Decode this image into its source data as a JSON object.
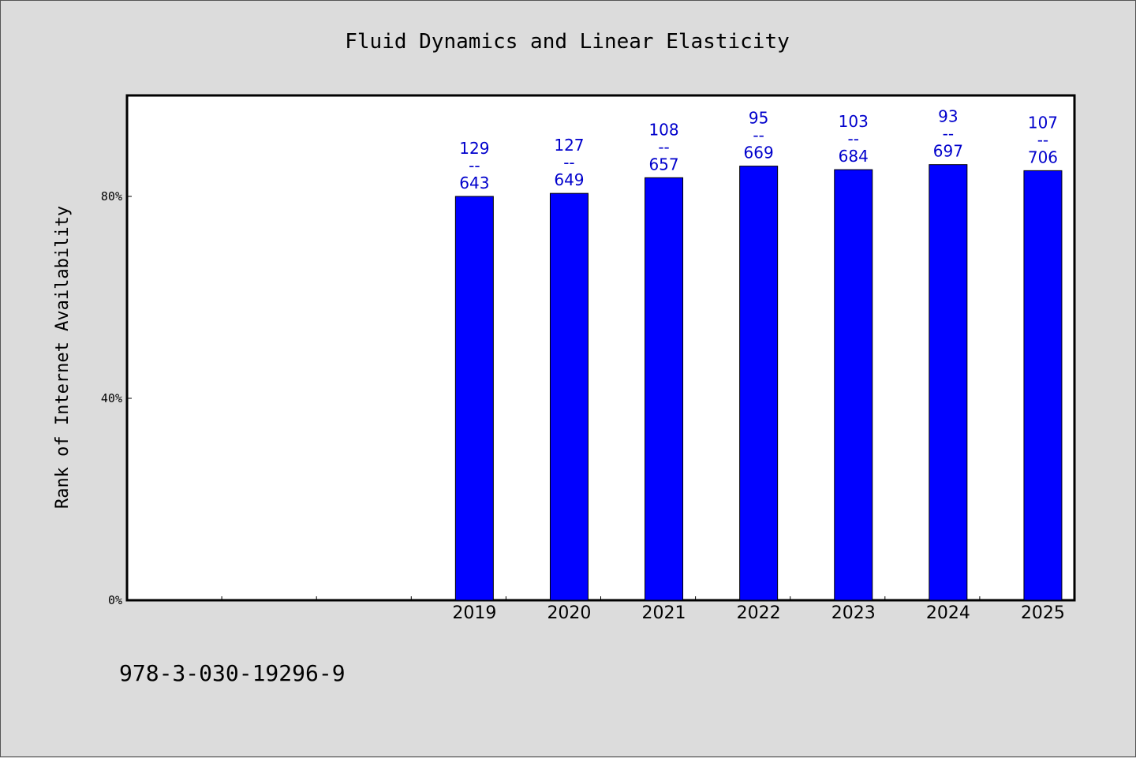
{
  "chart_data": {
    "type": "bar",
    "title": "Fluid Dynamics and Linear Elasticity",
    "xlabel": "",
    "ylabel": "Rank of Internet Availability",
    "categories": [
      "",
      "",
      "",
      "2019",
      "2020",
      "2021",
      "2022",
      "2023",
      "2024",
      "2025"
    ],
    "values": [
      null,
      null,
      null,
      80.0,
      80.6,
      83.7,
      86.0,
      85.3,
      86.3,
      85.1
    ],
    "value_unit": "%",
    "ylim": [
      0,
      100
    ],
    "yticks": [
      0,
      40,
      80
    ],
    "ytick_labels": [
      "0%",
      "40%",
      "80%"
    ],
    "bar_labels": [
      null,
      null,
      null,
      {
        "top": "129",
        "sep": "--",
        "bottom": "643"
      },
      {
        "top": "127",
        "sep": "--",
        "bottom": "649"
      },
      {
        "top": "108",
        "sep": "--",
        "bottom": "657"
      },
      {
        "top": "95",
        "sep": "--",
        "bottom": "669"
      },
      {
        "top": "103",
        "sep": "--",
        "bottom": "684"
      },
      {
        "top": "93",
        "sep": "--",
        "bottom": "697"
      },
      {
        "top": "107",
        "sep": "--",
        "bottom": "706"
      }
    ],
    "bar_color": "#0000ff",
    "label_color": "#0000cc",
    "grid": false,
    "legend": "none"
  },
  "footer_text": "978-3-030-19296-9"
}
